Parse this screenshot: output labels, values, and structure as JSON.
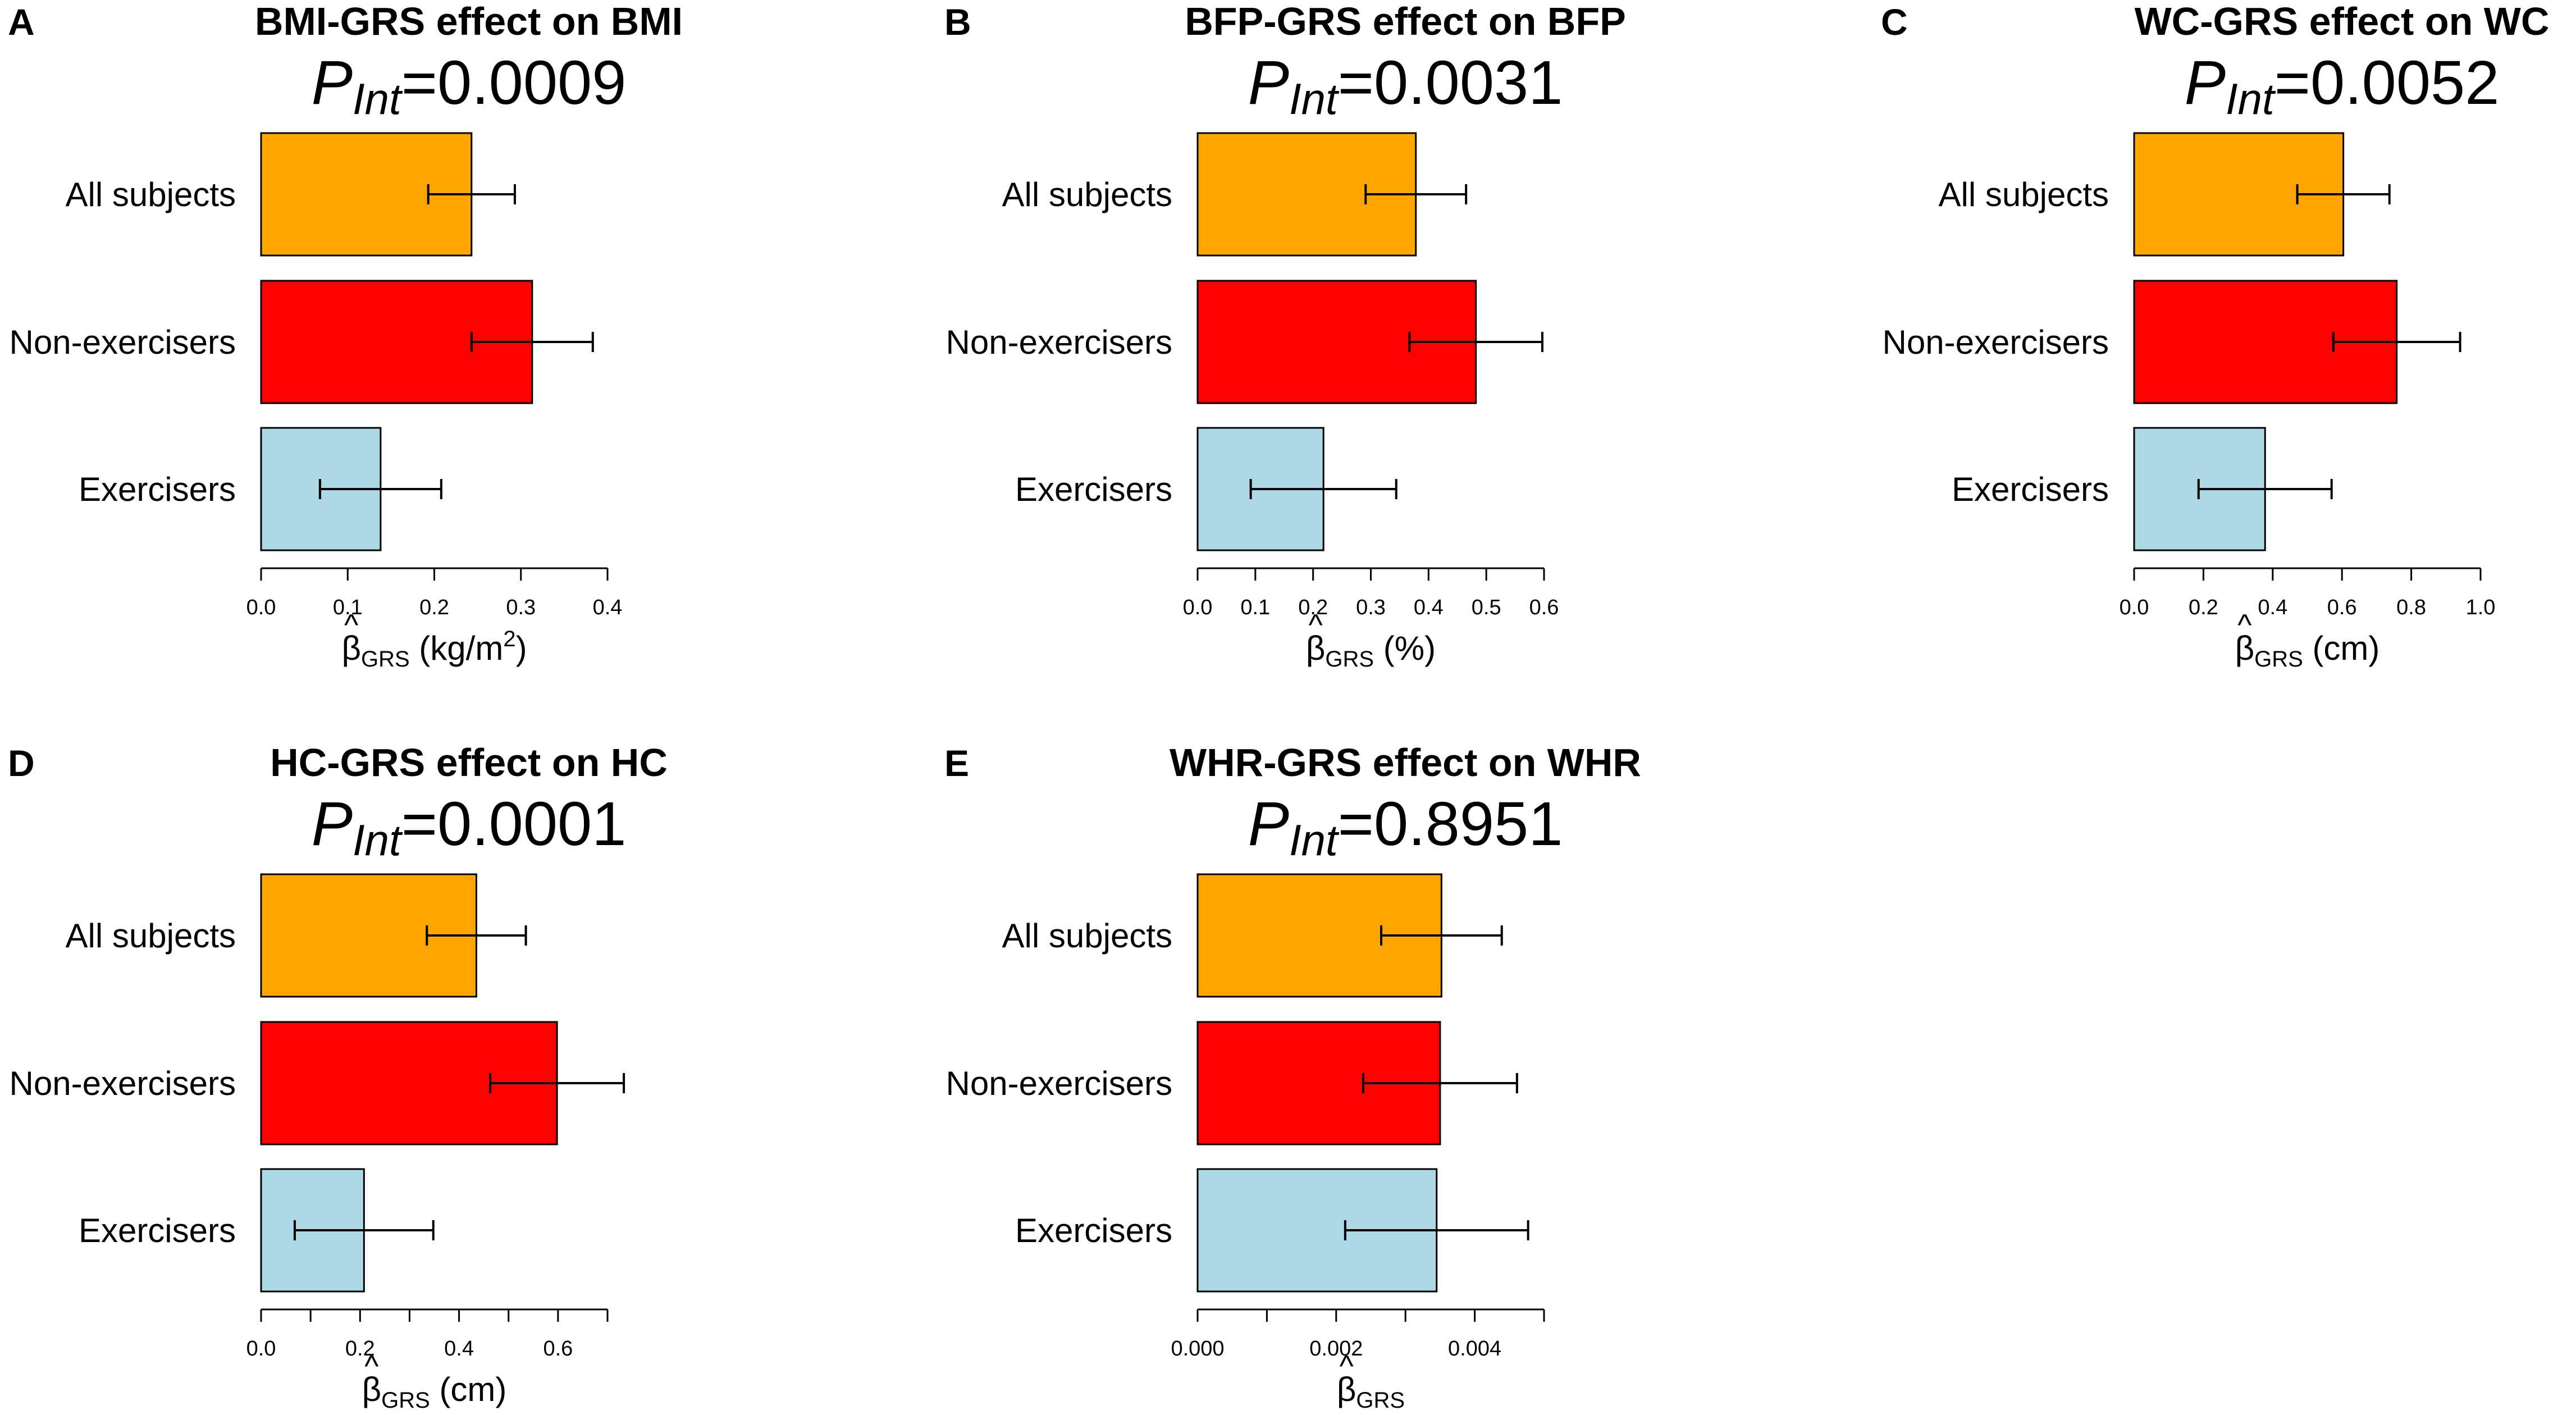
{
  "colors": {
    "all_subjects": "#FFA500",
    "non_exercisers": "#FF0000",
    "exercisers": "#ADD8E6",
    "stroke": "#000000"
  },
  "chart_data": [
    {
      "panel": "A",
      "type": "bar",
      "orientation": "horizontal",
      "title": "BMI-GRS effect on BMI",
      "p_label": "P",
      "p_subscript": "Int",
      "p_value": "=0.0009",
      "categories": [
        "All subjects",
        "Non-exercisers",
        "Exercisers"
      ],
      "values": [
        0.243,
        0.313,
        0.138
      ],
      "ci_low": [
        0.193,
        0.243,
        0.068
      ],
      "ci_high": [
        0.293,
        0.383,
        0.208
      ],
      "xlim": [
        0,
        0.4
      ],
      "ticks": [
        0.0,
        0.1,
        0.2,
        0.3,
        0.4
      ],
      "tick_labels": [
        "0.0",
        "0.1",
        "0.2",
        "0.3",
        "0.4"
      ],
      "xlabel": "β",
      "xlabel_sub": "GRS",
      "xlabel_unit_prefix": " (kg/m",
      "xlabel_unit_sup": "2",
      "xlabel_unit_suffix": ")"
    },
    {
      "panel": "B",
      "type": "bar",
      "orientation": "horizontal",
      "title": "BFP-GRS effect on BFP",
      "p_label": "P",
      "p_subscript": "Int",
      "p_value": "=0.0031",
      "categories": [
        "All subjects",
        "Non-exercisers",
        "Exercisers"
      ],
      "values": [
        0.378,
        0.482,
        0.218
      ],
      "ci_low": [
        0.291,
        0.367,
        0.092
      ],
      "ci_high": [
        0.465,
        0.597,
        0.344
      ],
      "xlim": [
        0,
        0.6
      ],
      "ticks": [
        0.0,
        0.1,
        0.2,
        0.3,
        0.4,
        0.5,
        0.6
      ],
      "tick_labels": [
        "0.0",
        "0.1",
        "0.2",
        "0.3",
        "0.4",
        "0.5",
        "0.6"
      ],
      "xlabel": "β",
      "xlabel_sub": "GRS",
      "xlabel_unit": " (%)"
    },
    {
      "panel": "C",
      "type": "bar",
      "orientation": "horizontal",
      "title": "WC-GRS effect on WC",
      "p_label": "P",
      "p_subscript": "Int",
      "p_value": "=0.0052",
      "categories": [
        "All subjects",
        "Non-exercisers",
        "Exercisers"
      ],
      "values": [
        0.604,
        0.758,
        0.378
      ],
      "ci_low": [
        0.471,
        0.575,
        0.186
      ],
      "ci_high": [
        0.737,
        0.941,
        0.57
      ],
      "xlim": [
        0,
        1.0
      ],
      "ticks": [
        0.0,
        0.2,
        0.4,
        0.6,
        0.8,
        1.0
      ],
      "tick_labels": [
        "0.0",
        "0.2",
        "0.4",
        "0.6",
        "0.8",
        "1.0"
      ],
      "xlabel": "β",
      "xlabel_sub": "GRS",
      "xlabel_unit": " (cm)"
    },
    {
      "panel": "D",
      "type": "bar",
      "orientation": "horizontal",
      "title": "HC-GRS effect on HC",
      "p_label": "P",
      "p_subscript": "Int",
      "p_value": "=0.0001",
      "categories": [
        "All subjects",
        "Non-exercisers",
        "Exercisers"
      ],
      "values": [
        0.435,
        0.598,
        0.208
      ],
      "ci_low": [
        0.335,
        0.463,
        0.068
      ],
      "ci_high": [
        0.535,
        0.733,
        0.348
      ],
      "xlim": [
        0,
        0.7
      ],
      "ticks": [
        0.0,
        0.1,
        0.2,
        0.3,
        0.4,
        0.5,
        0.6,
        0.7
      ],
      "tick_labels": [
        "0.0",
        "",
        "0.2",
        "",
        "0.4",
        "",
        "0.6",
        ""
      ],
      "xlabel": "β",
      "xlabel_sub": "GRS",
      "xlabel_unit": " (cm)"
    },
    {
      "panel": "E",
      "type": "bar",
      "orientation": "horizontal",
      "title": "WHR-GRS effect on WHR",
      "p_label": "P",
      "p_subscript": "Int",
      "p_value": "=0.8951",
      "categories": [
        "All subjects",
        "Non-exercisers",
        "Exercisers"
      ],
      "values": [
        0.00352,
        0.0035,
        0.00345
      ],
      "ci_low": [
        0.00265,
        0.00239,
        0.00213
      ],
      "ci_high": [
        0.00439,
        0.00461,
        0.00477
      ],
      "xlim": [
        0,
        0.005
      ],
      "ticks": [
        0.0,
        0.001,
        0.002,
        0.003,
        0.004,
        0.005
      ],
      "tick_labels": [
        "0.000",
        "",
        "0.002",
        "",
        "0.004",
        ""
      ],
      "xlabel": "β",
      "xlabel_sub": "GRS",
      "xlabel_unit": ""
    }
  ]
}
